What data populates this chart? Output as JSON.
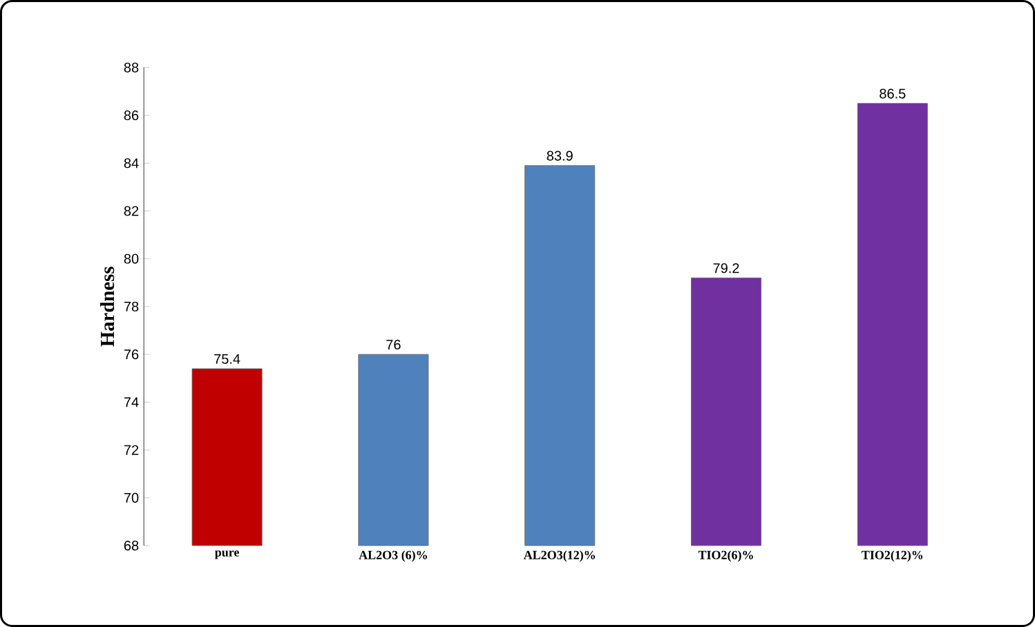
{
  "chart_data": {
    "type": "bar",
    "ylabel": "Hardness",
    "categories": [
      "pure",
      "AL2O3 (6)%",
      "AL2O3(12)%",
      "TIO2(6)%",
      "TIO2(12)%"
    ],
    "values": [
      75.4,
      76,
      83.9,
      79.2,
      86.5
    ],
    "colors": [
      "#c00000",
      "#4f81bd",
      "#4f81bd",
      "#7030a0",
      "#7030a0"
    ],
    "ylim": [
      68,
      88
    ],
    "yticks": [
      68,
      70,
      72,
      74,
      76,
      78,
      80,
      82,
      84,
      86,
      88
    ],
    "data_labels": true
  }
}
